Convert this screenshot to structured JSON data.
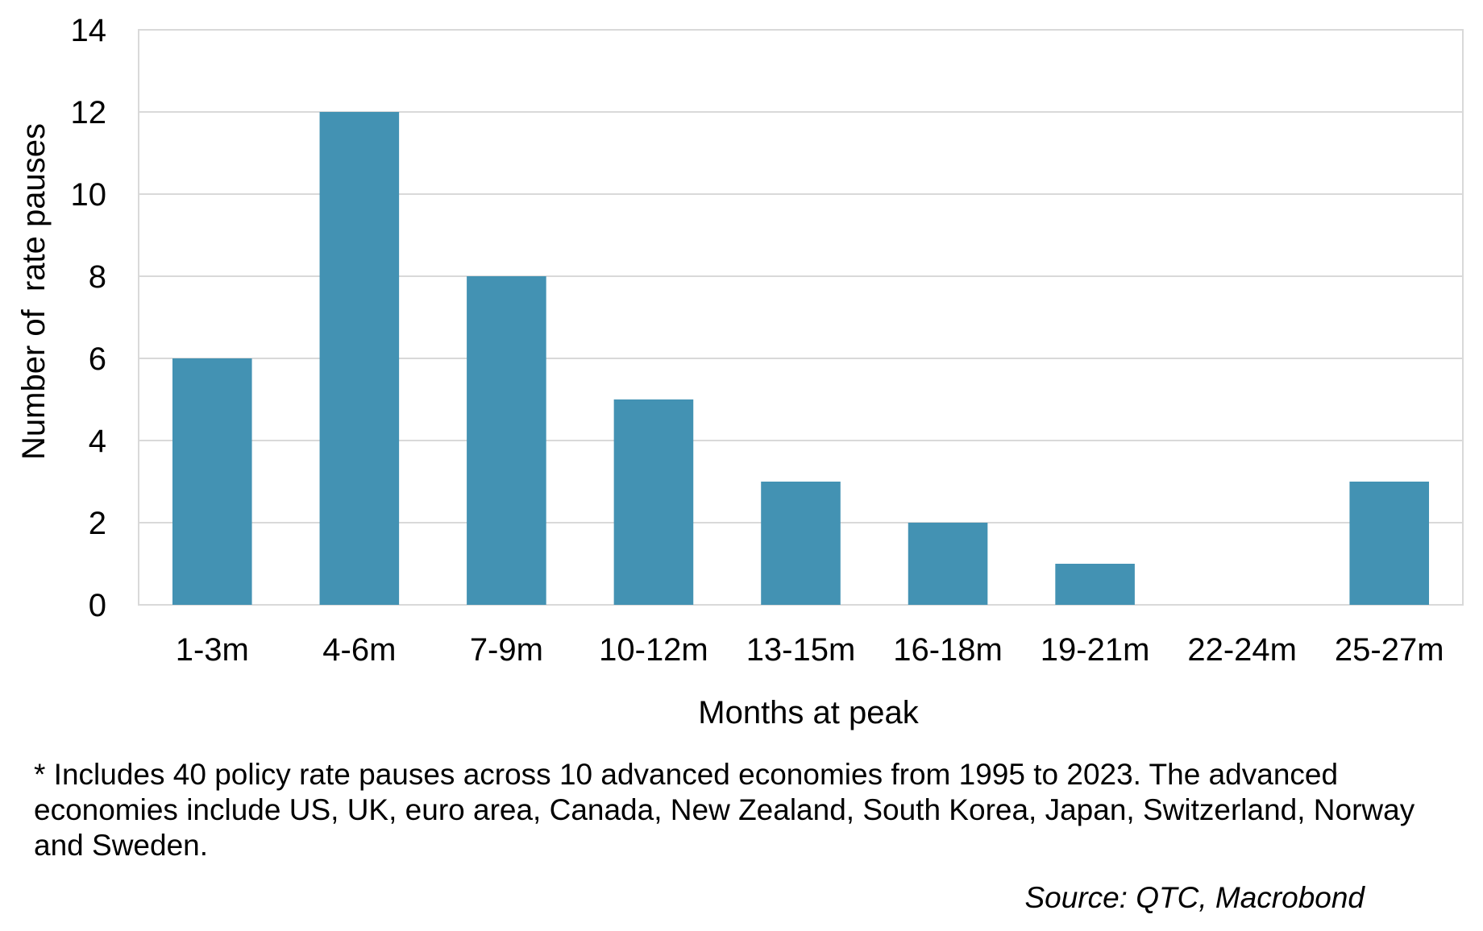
{
  "chart_data": {
    "type": "bar",
    "categories": [
      "1-3m",
      "4-6m",
      "7-9m",
      "10-12m",
      "13-15m",
      "16-18m",
      "19-21m",
      "22-24m",
      "25-27m"
    ],
    "values": [
      6,
      12,
      8,
      5,
      3,
      2,
      1,
      0,
      3
    ],
    "xlabel": "Months at peak",
    "ylabel": "Number of  rate pauses",
    "ylim": [
      0,
      14
    ],
    "yticks": [
      "0",
      "2",
      "4",
      "6",
      "8",
      "10",
      "12",
      "14"
    ],
    "grid": true,
    "legend": "none",
    "bar_color": "#4392b3"
  },
  "footnote": "* Includes 40 policy rate pauses across 10 advanced economies from 1995 to 2023. The advanced economies include US, UK, euro area, Canada, New Zealand, South Korea, Japan, Switzerland, Norway and Sweden.",
  "source": "Source: QTC, Macrobond"
}
